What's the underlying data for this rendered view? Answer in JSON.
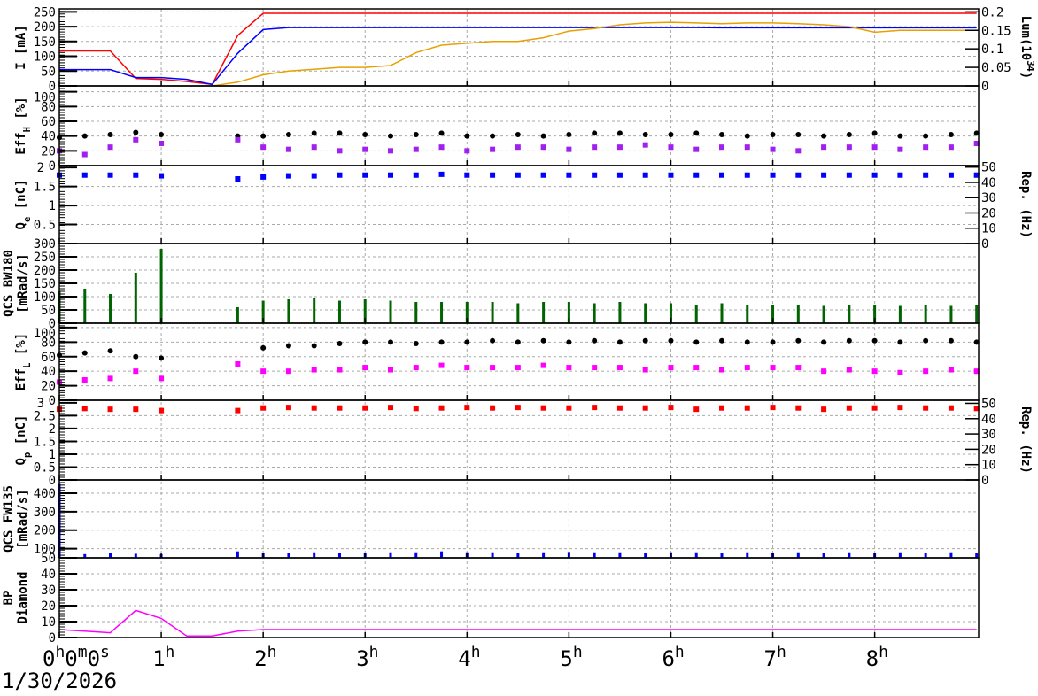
{
  "chart_data": [
    {
      "type": "line",
      "panel": "current",
      "ylabel": [
        {
          "t": "I [mA]"
        }
      ],
      "ylim": [
        0,
        260
      ],
      "yticks": [
        "0",
        "50",
        "100",
        "150",
        "200",
        "250"
      ],
      "y2label": [
        {
          "t": "Lum(10"
        },
        {
          "t": "34",
          "sup": true
        },
        {
          "t": ")"
        }
      ],
      "y2lim": [
        0,
        0.208
      ],
      "y2ticks": [
        "0",
        "0.05",
        "0.1",
        "0.15",
        "0.2"
      ],
      "series": [
        {
          "axis": "left",
          "kind": "line",
          "color": "#ff0000",
          "values": [
            118,
            118,
            118,
            25,
            22,
            15,
            5,
            170,
            245,
            245,
            245,
            245,
            245,
            245,
            245,
            245,
            245,
            245,
            245,
            245,
            245,
            245,
            245,
            245,
            245,
            245,
            245,
            245,
            245,
            245,
            245,
            245,
            245,
            245,
            245,
            245,
            245
          ]
        },
        {
          "axis": "left",
          "kind": "line",
          "color": "#0000ff",
          "values": [
            55,
            55,
            55,
            28,
            28,
            22,
            5,
            110,
            190,
            197,
            197,
            197,
            197,
            197,
            197,
            197,
            197,
            197,
            197,
            197,
            197,
            197,
            197,
            197,
            197,
            197,
            196,
            196,
            196,
            196,
            196,
            196,
            196,
            196,
            196,
            196,
            196
          ]
        },
        {
          "axis": "right",
          "kind": "line",
          "color": "#e8a000",
          "values": [
            null,
            null,
            null,
            null,
            null,
            null,
            0,
            0.01,
            0.03,
            0.04,
            0.045,
            0.05,
            0.05,
            0.055,
            0.09,
            0.11,
            0.115,
            0.12,
            0.12,
            0.13,
            0.148,
            0.155,
            0.165,
            0.17,
            0.172,
            0.17,
            0.168,
            0.17,
            0.17,
            0.168,
            0.165,
            0.16,
            0.145,
            0.15,
            0.15,
            0.15,
            0.15
          ]
        }
      ]
    },
    {
      "type": "scatter",
      "panel": "eff_h",
      "ylabel": [
        {
          "t": "Eff"
        },
        {
          "t": "H",
          "sub": true
        },
        {
          "t": " [%]"
        }
      ],
      "ylim": [
        0,
        108
      ],
      "yticks": [
        "0",
        "20",
        "40",
        "60",
        "80",
        "100"
      ],
      "series": [
        {
          "axis": "left",
          "kind": "dots",
          "color": "#000000",
          "values": [
            38,
            40,
            42,
            45,
            42,
            null,
            null,
            40,
            40,
            42,
            44,
            44,
            42,
            40,
            42,
            44,
            40,
            40,
            42,
            40,
            42,
            44,
            44,
            42,
            42,
            44,
            42,
            40,
            42,
            42,
            40,
            42,
            44,
            40,
            40,
            42,
            44
          ]
        },
        {
          "axis": "left",
          "kind": "squares",
          "color": "#a020f0",
          "values": [
            20,
            15,
            25,
            35,
            30,
            null,
            null,
            35,
            25,
            22,
            25,
            20,
            22,
            20,
            22,
            25,
            20,
            22,
            25,
            25,
            22,
            25,
            25,
            28,
            25,
            22,
            25,
            25,
            22,
            20,
            25,
            25,
            25,
            22,
            25,
            25,
            30
          ]
        }
      ]
    },
    {
      "type": "scatter",
      "panel": "qe",
      "ylabel": [
        {
          "t": "Q"
        },
        {
          "t": "e",
          "sub": true
        },
        {
          "t": " [nC]"
        }
      ],
      "ylim": [
        0,
        2.05
      ],
      "yticks": [
        "",
        "0.5",
        "1",
        "1.5",
        "2"
      ],
      "y2label": [
        {
          "t": "Rep. (Hz)"
        }
      ],
      "y2lim": [
        0,
        51
      ],
      "y2ticks": [
        "0",
        "10",
        "20",
        "30",
        "40",
        "50"
      ],
      "series": [
        {
          "axis": "left",
          "kind": "squares",
          "color": "#0000ff",
          "values": [
            1.8,
            1.8,
            1.8,
            1.8,
            1.78,
            null,
            null,
            1.7,
            1.75,
            1.78,
            1.78,
            1.8,
            1.8,
            1.8,
            1.8,
            1.82,
            1.8,
            1.8,
            1.8,
            1.8,
            1.8,
            1.8,
            1.8,
            1.8,
            1.8,
            1.8,
            1.8,
            1.8,
            1.8,
            1.8,
            1.8,
            1.8,
            1.8,
            1.8,
            1.8,
            1.8,
            1.8
          ]
        }
      ]
    },
    {
      "type": "bar",
      "panel": "bw180",
      "ylabel": [
        {
          "t": "QCS BW180"
        }
      ],
      "ylabel2": [
        {
          "t": "[mRad/s]"
        }
      ],
      "ylim": [
        0,
        300
      ],
      "yticks": [
        "0",
        "50",
        "100",
        "150",
        "200",
        "250",
        "300"
      ],
      "series": [
        {
          "axis": "left",
          "kind": "bars",
          "color": "#006400",
          "values": [
            120,
            130,
            110,
            190,
            280,
            null,
            null,
            60,
            85,
            90,
            95,
            85,
            90,
            85,
            80,
            80,
            80,
            80,
            75,
            80,
            80,
            75,
            80,
            75,
            75,
            70,
            75,
            70,
            70,
            70,
            65,
            70,
            70,
            65,
            70,
            65,
            70
          ]
        }
      ]
    },
    {
      "type": "scatter",
      "panel": "eff_l",
      "ylabel": [
        {
          "t": "Eff"
        },
        {
          "t": "L",
          "sub": true
        },
        {
          "t": " [%]"
        }
      ],
      "ylim": [
        0,
        106
      ],
      "yticks": [
        "0",
        "20",
        "40",
        "60",
        "80",
        "100"
      ],
      "series": [
        {
          "axis": "left",
          "kind": "dots",
          "color": "#000000",
          "values": [
            62,
            65,
            68,
            60,
            58,
            null,
            null,
            null,
            72,
            75,
            75,
            78,
            80,
            80,
            78,
            80,
            80,
            82,
            80,
            82,
            80,
            82,
            80,
            82,
            82,
            80,
            82,
            80,
            80,
            82,
            80,
            82,
            82,
            80,
            82,
            82,
            80
          ]
        },
        {
          "axis": "left",
          "kind": "squares",
          "color": "#ff00ff",
          "values": [
            25,
            28,
            30,
            40,
            30,
            null,
            null,
            50,
            40,
            40,
            42,
            42,
            45,
            42,
            45,
            48,
            45,
            45,
            45,
            48,
            45,
            45,
            45,
            42,
            45,
            45,
            42,
            45,
            45,
            45,
            40,
            42,
            40,
            38,
            40,
            42,
            40
          ]
        }
      ]
    },
    {
      "type": "scatter",
      "panel": "qp",
      "ylabel": [
        {
          "t": "Q"
        },
        {
          "t": "p",
          "sub": true
        },
        {
          "t": " [nC]"
        }
      ],
      "ylim": [
        0,
        3.1
      ],
      "yticks": [
        "0",
        "0.5",
        "1",
        "1.5",
        "2",
        "2.5",
        "3"
      ],
      "y2label": [
        {
          "t": "Rep. (Hz)"
        }
      ],
      "y2lim": [
        0,
        52
      ],
      "y2ticks": [
        "0",
        "10",
        "20",
        "30",
        "40",
        "50"
      ],
      "series": [
        {
          "axis": "left",
          "kind": "squares",
          "color": "#ff0000",
          "values": [
            2.75,
            2.78,
            2.75,
            2.75,
            2.7,
            null,
            null,
            2.7,
            2.8,
            2.82,
            2.8,
            2.8,
            2.8,
            2.82,
            2.78,
            2.8,
            2.82,
            2.8,
            2.82,
            2.8,
            2.8,
            2.82,
            2.8,
            2.8,
            2.82,
            2.75,
            2.8,
            2.8,
            2.82,
            2.8,
            2.75,
            2.8,
            2.8,
            2.82,
            2.8,
            2.8,
            2.78
          ]
        }
      ]
    },
    {
      "type": "bar",
      "panel": "fw135",
      "ylabel": [
        {
          "t": "QCS FW135"
        }
      ],
      "ylabel2": [
        {
          "t": "[mRad/s]"
        }
      ],
      "ylim": [
        50,
        472
      ],
      "yticks": [
        "50",
        "100",
        "200",
        "300",
        "400"
      ],
      "ytickvals": [
        50,
        100,
        200,
        300,
        400
      ],
      "series": [
        {
          "axis": "left",
          "kind": "bars",
          "color": "#0000ff",
          "values": [
            450,
            70,
            75,
            72,
            70,
            null,
            null,
            85,
            75,
            75,
            80,
            78,
            75,
            80,
            80,
            85,
            80,
            80,
            78,
            80,
            82,
            80,
            80,
            78,
            80,
            80,
            78,
            80,
            78,
            80,
            78,
            80,
            78,
            80,
            78,
            80,
            78
          ]
        }
      ]
    },
    {
      "type": "line",
      "panel": "bp",
      "ylabel": [
        {
          "t": "BP"
        }
      ],
      "ylabel2": [
        {
          "t": "Diamond"
        }
      ],
      "ylim": [
        0,
        50
      ],
      "yticks": [
        "0",
        "10",
        "20",
        "30",
        "40"
      ],
      "series": [
        {
          "axis": "left",
          "kind": "line",
          "color": "#ff00ff",
          "values": [
            5,
            4,
            3,
            17,
            12,
            1,
            1,
            4,
            5,
            5,
            5,
            5,
            5,
            5,
            5,
            5,
            5,
            5,
            5,
            5,
            5,
            5,
            5,
            5,
            5,
            5,
            5,
            5,
            5,
            5,
            5,
            5,
            5,
            5,
            5,
            5,
            5
          ]
        }
      ]
    }
  ],
  "x": [
    0,
    0.25,
    0.5,
    0.75,
    1,
    1.25,
    1.5,
    1.75,
    2,
    2.25,
    2.5,
    2.75,
    3,
    3.25,
    3.5,
    3.75,
    4,
    4.25,
    4.5,
    4.75,
    5,
    5.25,
    5.5,
    5.75,
    6,
    6.25,
    6.5,
    6.75,
    7,
    7.25,
    7.5,
    7.75,
    8,
    8.25,
    8.5,
    8.75,
    9
  ],
  "xlim": [
    0,
    9.02
  ],
  "xticks": [
    [
      {
        "t": "0"
      },
      {
        "t": "h",
        "sup": true
      },
      {
        "t": "0"
      },
      {
        "t": "m",
        "sup": true
      },
      {
        "t": "0"
      },
      {
        "t": "s",
        "sup": true
      }
    ],
    [
      {
        "t": "1"
      },
      {
        "t": "h",
        "sup": true
      }
    ],
    [
      {
        "t": "2"
      },
      {
        "t": "h",
        "sup": true
      }
    ],
    [
      {
        "t": "3"
      },
      {
        "t": "h",
        "sup": true
      }
    ],
    [
      {
        "t": "4"
      },
      {
        "t": "h",
        "sup": true
      }
    ],
    [
      {
        "t": "5"
      },
      {
        "t": "h",
        "sup": true
      }
    ],
    [
      {
        "t": "6"
      },
      {
        "t": "h",
        "sup": true
      }
    ],
    [
      {
        "t": "7"
      },
      {
        "t": "h",
        "sup": true
      }
    ],
    [
      {
        "t": "8"
      },
      {
        "t": "h",
        "sup": true
      }
    ]
  ],
  "date": "1/30/2026",
  "grid": true
}
